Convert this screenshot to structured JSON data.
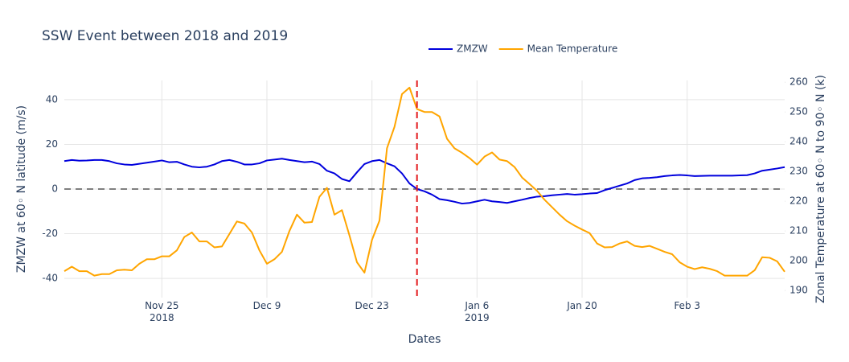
{
  "chart_data": {
    "type": "line",
    "title": "SSW Event between 2018 and 2019",
    "x_label": "Dates",
    "y_label": "ZMZW at 60◦ N latitude (m/s)",
    "y2_label": "Zonal Temperature at 60◦ N to 90◦ N (k)",
    "xlim": [
      "2018-11-12",
      "2019-02-16"
    ],
    "xticks": [
      {
        "value": "2018-11-25",
        "label": "Nov 25\n2018"
      },
      {
        "value": "2018-12-09",
        "label": "Dec 9"
      },
      {
        "value": "2018-12-23",
        "label": "Dec 23"
      },
      {
        "value": "2019-01-06",
        "label": "Jan 6\n2019"
      },
      {
        "value": "2019-01-20",
        "label": "Jan 20"
      },
      {
        "value": "2019-02-03",
        "label": "Feb 3"
      }
    ],
    "ylim": [
      -48.6,
      48.6
    ],
    "yticks": [
      -40,
      -20,
      0,
      20,
      40
    ],
    "y2lim": [
      187.6,
      260.6
    ],
    "y2ticks": [
      190,
      200,
      210,
      220,
      230,
      240,
      250,
      260
    ],
    "grid": true,
    "legend_position": "top",
    "reference_line": {
      "y": 0,
      "color": "#808080"
    },
    "event_line": {
      "x": "2018-12-29",
      "color": "#e31a1c"
    },
    "start_date": "2018-11-12",
    "series": [
      {
        "name": "ZMZW",
        "color": "#0000dd",
        "values": [
          12.5,
          13,
          12.7,
          12.8,
          13,
          13,
          12.5,
          11.5,
          11,
          10.8,
          11.3,
          11.8,
          12.3,
          12.8,
          12,
          12.2,
          11,
          10,
          9.7,
          10,
          11,
          12.5,
          13,
          12.2,
          11,
          11,
          11.5,
          12.8,
          13.2,
          13.6,
          13,
          12.5,
          12,
          12.3,
          11.2,
          8.2,
          7,
          4.5,
          3.5,
          7.5,
          11.2,
          12.5,
          13,
          11.5,
          10.2,
          7,
          2.5,
          0,
          -1,
          -2.5,
          -4.5,
          -5,
          -5.7,
          -6.5,
          -6.2,
          -5.5,
          -4.8,
          -5.5,
          -5.8,
          -6.2,
          -5.5,
          -4.8,
          -4,
          -3.4,
          -3.2,
          -2.8,
          -2.5,
          -2.2,
          -2.5,
          -2.3,
          -2,
          -1.8,
          -0.5,
          0.5,
          1.5,
          2.5,
          4,
          4.8,
          5,
          5.3,
          5.8,
          6.1,
          6.3,
          6.1,
          5.8,
          5.9,
          6,
          6,
          6,
          6,
          6.1,
          6.2,
          7,
          8.2,
          8.7,
          9.2,
          9.8
        ]
      },
      {
        "name": "Mean Temperature",
        "color": "#ffa500",
        "axis": "y2",
        "values": [
          196.5,
          198,
          196.5,
          196.5,
          195,
          195.5,
          195.5,
          196.8,
          197,
          196.8,
          199,
          200.5,
          200.5,
          201.5,
          201.5,
          203.5,
          208,
          209.5,
          206.5,
          206.5,
          204.5,
          204.8,
          209,
          213.2,
          212.5,
          209.5,
          203.5,
          199,
          200.5,
          203,
          210,
          215.5,
          212.8,
          213,
          221.5,
          224.5,
          215.5,
          217,
          208.5,
          199.5,
          196,
          207,
          213.5,
          237.8,
          245,
          256,
          258.2,
          251,
          250,
          250,
          248.5,
          241,
          237.8,
          236.3,
          234.5,
          232.3,
          235,
          236.4,
          234,
          233.5,
          231.5,
          228,
          225.8,
          223.5,
          220.5,
          218,
          215.5,
          213.3,
          211.8,
          210.5,
          209.3,
          205.8,
          204.5,
          204.6,
          205.8,
          206.5,
          205,
          204.6,
          205,
          204,
          203,
          202.2,
          199.5,
          198,
          197.2,
          197.8,
          197.3,
          196.5,
          195,
          195,
          195,
          195,
          196.8,
          201.2,
          201,
          199.8,
          196.3
        ]
      }
    ]
  }
}
